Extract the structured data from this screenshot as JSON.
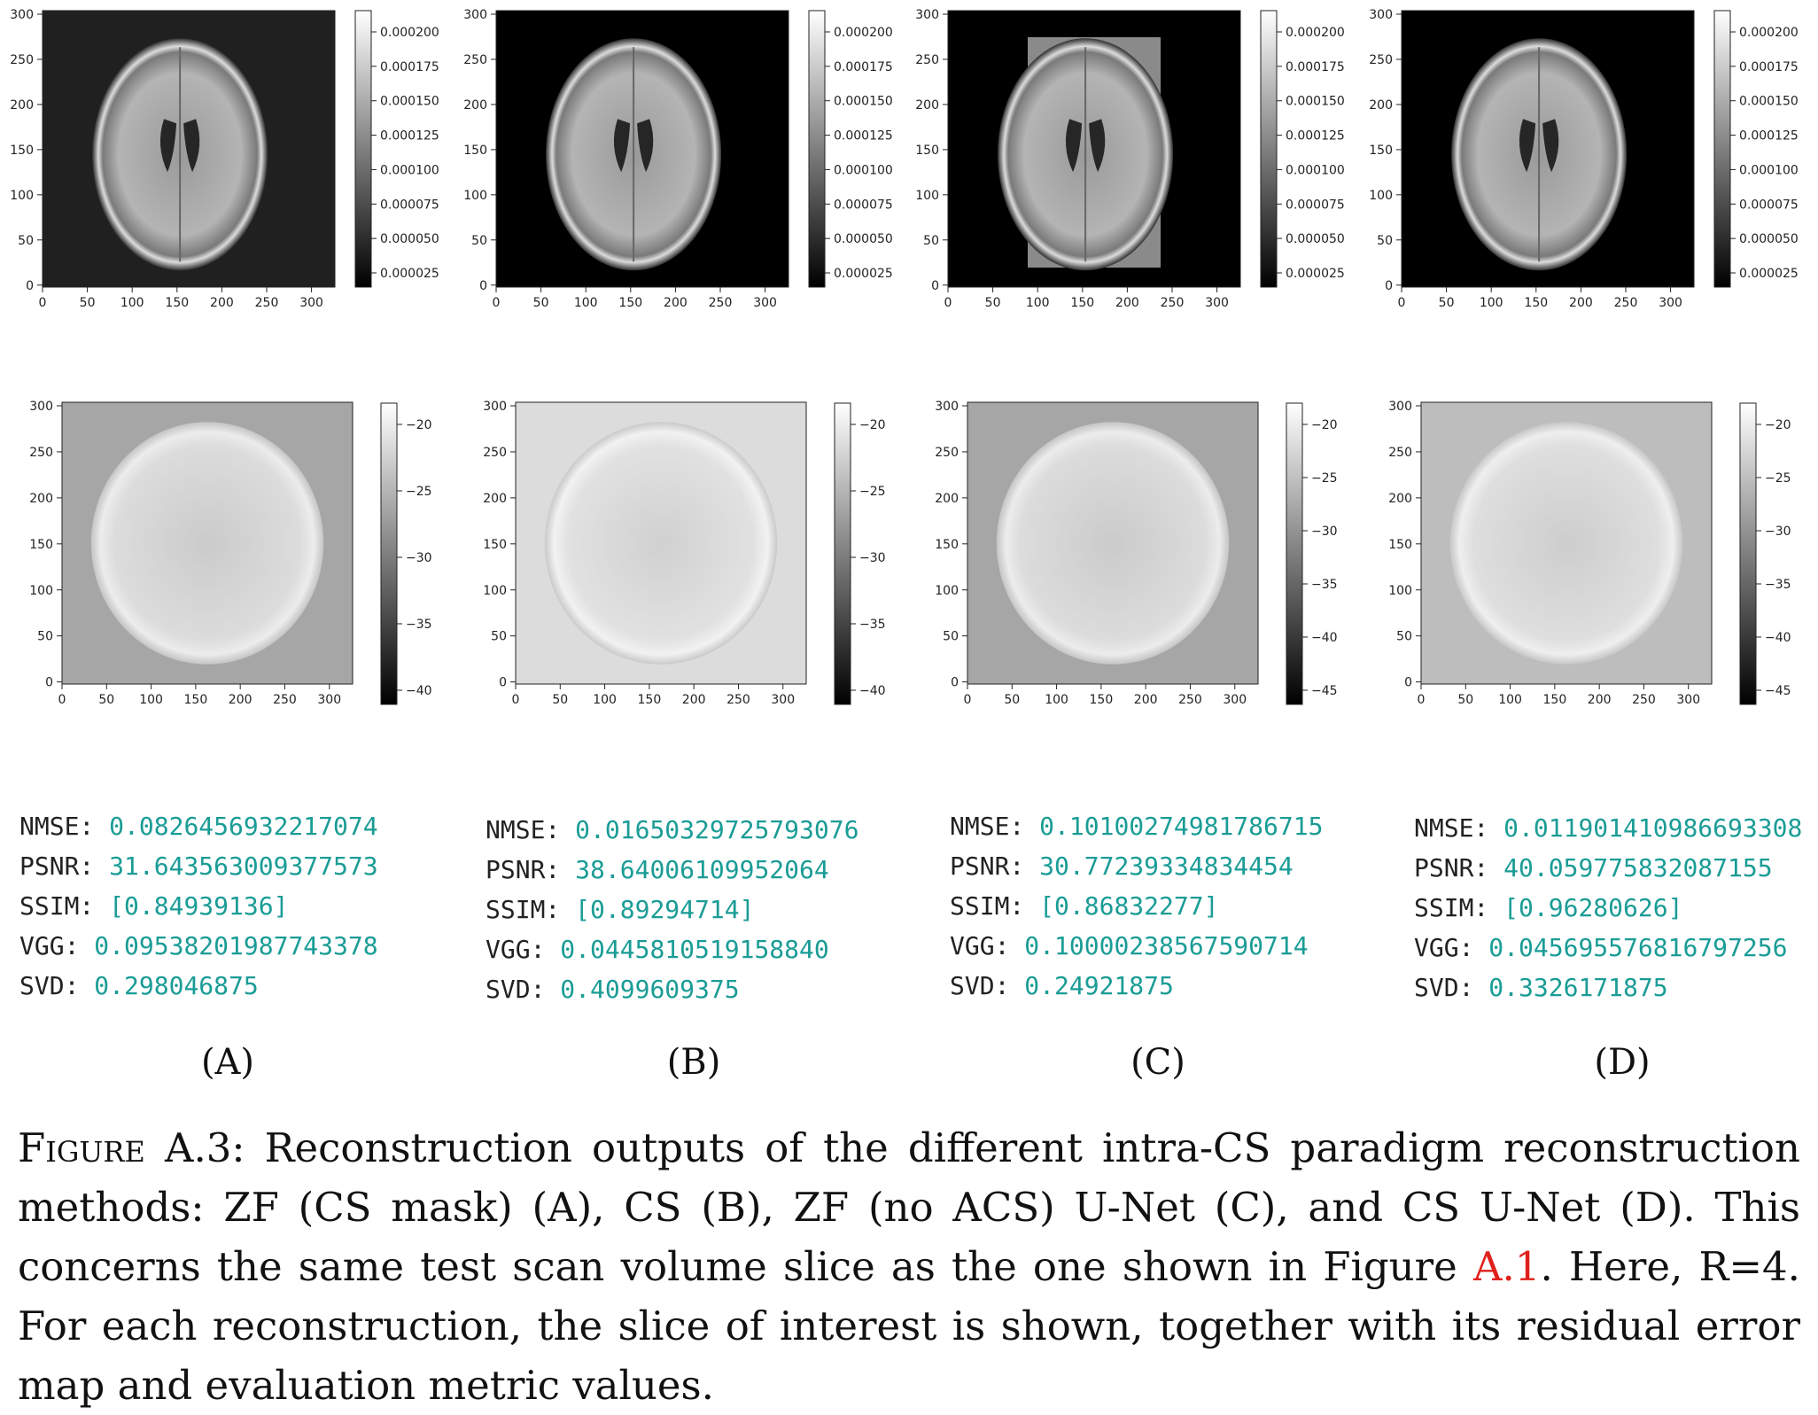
{
  "panels": [
    {
      "label": "(A)",
      "top_ticks_y": [
        "300",
        "250",
        "200",
        "150",
        "100",
        "50",
        "0"
      ],
      "top_ticks_x": [
        "0",
        "50",
        "100",
        "150",
        "200",
        "250",
        "300"
      ],
      "top_cbar": [
        "0.000200",
        "0.000175",
        "0.000150",
        "0.000125",
        "0.000100",
        "0.000075",
        "0.000050",
        "0.000025"
      ],
      "bot_ticks_y": [
        "300",
        "250",
        "200",
        "150",
        "100",
        "50",
        "0"
      ],
      "bot_ticks_x": [
        "0",
        "50",
        "100",
        "150",
        "200",
        "250",
        "300"
      ],
      "bot_cbar": [
        "−20",
        "−25",
        "−30",
        "−35",
        "−40"
      ],
      "metrics": {
        "nmse": "0.0826456932217074",
        "psnr": "31.643563009377573",
        "ssim": "[0.84939136]",
        "vgg": "0.09538201987743378",
        "svd": "0.298046875"
      }
    },
    {
      "label": "(B)",
      "top_ticks_y": [
        "300",
        "250",
        "200",
        "150",
        "100",
        "50",
        "0"
      ],
      "top_ticks_x": [
        "0",
        "50",
        "100",
        "150",
        "200",
        "250",
        "300"
      ],
      "top_cbar": [
        "0.000200",
        "0.000175",
        "0.000150",
        "0.000125",
        "0.000100",
        "0.000075",
        "0.000050",
        "0.000025"
      ],
      "bot_ticks_y": [
        "300",
        "250",
        "200",
        "150",
        "100",
        "50",
        "0"
      ],
      "bot_ticks_x": [
        "0",
        "50",
        "100",
        "150",
        "200",
        "250",
        "300"
      ],
      "bot_cbar": [
        "−20",
        "−25",
        "−30",
        "−35",
        "−40"
      ],
      "metrics": {
        "nmse": "0.01650329725793076",
        "psnr": "38.64006109952064",
        "ssim": "[0.89294714]",
        "vgg": "0.0445810519158840",
        "svd": "0.4099609375"
      }
    },
    {
      "label": "(C)",
      "top_ticks_y": [
        "300",
        "250",
        "200",
        "150",
        "100",
        "50",
        "0"
      ],
      "top_ticks_x": [
        "0",
        "50",
        "100",
        "150",
        "200",
        "250",
        "300"
      ],
      "top_cbar": [
        "0.000200",
        "0.000175",
        "0.000150",
        "0.000125",
        "0.000100",
        "0.000075",
        "0.000050",
        "0.000025"
      ],
      "bot_ticks_y": [
        "300",
        "250",
        "200",
        "150",
        "100",
        "50",
        "0"
      ],
      "bot_ticks_x": [
        "0",
        "50",
        "100",
        "150",
        "200",
        "250",
        "300"
      ],
      "bot_cbar": [
        "−20",
        "−25",
        "−30",
        "−35",
        "−40",
        "−45"
      ],
      "metrics": {
        "nmse": "0.10100274981786715",
        "psnr": "30.77239334834454",
        "ssim": "[0.86832277]",
        "vgg": "0.10000238567590714",
        "svd": "0.24921875"
      }
    },
    {
      "label": "(D)",
      "top_ticks_y": [
        "300",
        "250",
        "200",
        "150",
        "100",
        "50",
        "0"
      ],
      "top_ticks_x": [
        "0",
        "50",
        "100",
        "150",
        "200",
        "250",
        "300"
      ],
      "top_cbar": [
        "0.000200",
        "0.000175",
        "0.000150",
        "0.000125",
        "0.000100",
        "0.000075",
        "0.000050",
        "0.000025"
      ],
      "bot_ticks_y": [
        "300",
        "250",
        "200",
        "150",
        "100",
        "50",
        "0"
      ],
      "bot_ticks_x": [
        "0",
        "50",
        "100",
        "150",
        "200",
        "250",
        "300"
      ],
      "bot_cbar": [
        "−20",
        "−25",
        "−30",
        "−35",
        "−40",
        "−45"
      ],
      "metrics": {
        "nmse": "0.011901410986693308",
        "psnr": "40.059775832087155",
        "ssim": "[0.96280626]",
        "vgg": "0.045695576816797256",
        "svd": "0.3326171875"
      }
    }
  ],
  "metric_keys": {
    "nmse": "NMSE:",
    "psnr": "PSNR:",
    "ssim": "SSIM:",
    "vgg": "VGG:",
    "svd": "SVD:"
  },
  "caption": {
    "figure_label": "Figure A.3:",
    "text_before_ref": " Reconstruction outputs of the different intra-CS paradigm reconstruction methods: ZF (CS mask) (A), CS (B), ZF (no ACS) U-Net (C), and CS U-Net (D). This concerns the same test scan volume slice as the one shown in Figure ",
    "ref": "A.1",
    "text_after_ref": ". Here, R=4. For each reconstruction, the slice of interest is shown, together with its residual error map and evaluation metric values."
  }
}
